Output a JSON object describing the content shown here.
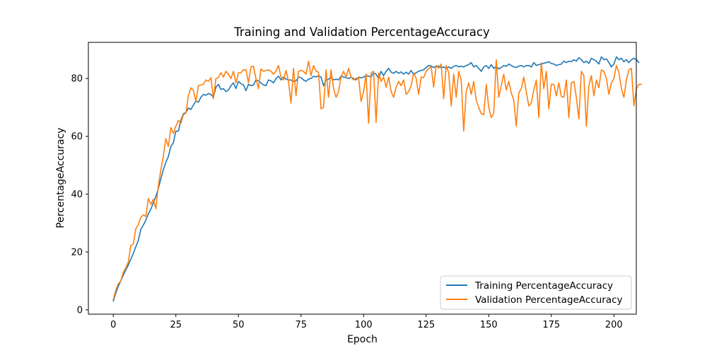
{
  "chart_data": {
    "type": "line",
    "title": "Training and Validation PercentageAccuracy",
    "xlabel": "Epoch",
    "ylabel": "PercentageAccuracy",
    "xlim": [
      -9.95,
      208.95
    ],
    "ylim": [
      -1.5,
      92.5
    ],
    "xticks": [
      0,
      25,
      50,
      75,
      100,
      125,
      150,
      175,
      200
    ],
    "yticks": [
      0,
      20,
      40,
      60,
      80
    ],
    "grid": false,
    "legend_position": "lower-right",
    "colors": {
      "training": "#1f77b4",
      "validation": "#ff7f0e"
    },
    "series": [
      {
        "name": "Training PercentageAccuracy",
        "color": "#1f77b4",
        "values": [
          3.0,
          5.8,
          8.2,
          10.0,
          12.0,
          13.8,
          15.5,
          17.5,
          19.5,
          21.8,
          24.0,
          27.8,
          29.3,
          31.0,
          33.2,
          34.8,
          37.0,
          39.2,
          42.0,
          45.3,
          48.5,
          51.0,
          53.0,
          56.5,
          57.8,
          61.8,
          61.8,
          65.5,
          67.8,
          68.2,
          69.8,
          69.3,
          70.8,
          72.2,
          71.8,
          73.5,
          74.5,
          74.2,
          74.8,
          74.5,
          73.5,
          77.0,
          78.0,
          76.2,
          76.5,
          75.5,
          76.0,
          77.5,
          78.5,
          76.5,
          79.0,
          78.2,
          77.8,
          75.8,
          78.0,
          77.5,
          77.8,
          79.5,
          79.2,
          78.5,
          77.8,
          77.5,
          79.5,
          79.2,
          78.5,
          80.0,
          80.8,
          79.5,
          80.5,
          79.8,
          79.5,
          79.5,
          79.0,
          79.2,
          80.5,
          80.3,
          79.5,
          79.0,
          79.8,
          80.0,
          80.8,
          80.5,
          81.0,
          80.5,
          77.5,
          79.5,
          79.8,
          80.5,
          79.5,
          79.8,
          79.5,
          80.8,
          80.5,
          80.3,
          80.0,
          80.5,
          80.0,
          79.5,
          80.5,
          80.2,
          80.5,
          81.0,
          80.8,
          80.5,
          82.0,
          81.5,
          80.0,
          82.5,
          81.0,
          82.5,
          83.5,
          82.2,
          81.8,
          82.5,
          81.8,
          82.3,
          81.5,
          82.2,
          81.5,
          82.8,
          81.3,
          82.0,
          82.5,
          82.8,
          83.0,
          83.8,
          84.5,
          84.3,
          83.8,
          84.2,
          84.3,
          83.7,
          84.0,
          83.5,
          84.0,
          83.5,
          84.2,
          84.5,
          84.0,
          84.3,
          84.0,
          84.5,
          84.8,
          85.5,
          84.0,
          84.5,
          83.5,
          82.5,
          84.0,
          84.5,
          83.5,
          84.8,
          83.5,
          84.2,
          83.3,
          83.8,
          84.5,
          84.2,
          85.0,
          84.5,
          84.0,
          83.8,
          84.3,
          84.5,
          84.0,
          84.5,
          84.5,
          84.0,
          85.5,
          84.5,
          84.8,
          85.0,
          85.3,
          85.5,
          85.8,
          85.2,
          85.0,
          84.5,
          84.8,
          85.0,
          86.0,
          85.5,
          86.0,
          85.8,
          86.5,
          86.0,
          87.2,
          86.5,
          85.5,
          86.0,
          85.2,
          87.0,
          86.5,
          86.0,
          85.0,
          87.5,
          86.5,
          86.8,
          85.5,
          84.0,
          85.0,
          87.5,
          86.5,
          87.0,
          85.8,
          86.5,
          85.5,
          86.5,
          87.0,
          86.5,
          85.5
        ]
      },
      {
        "name": "Validation PercentageAccuracy",
        "color": "#ff7f0e",
        "values": [
          3.5,
          6.8,
          9.0,
          10.0,
          13.0,
          14.5,
          16.5,
          22.2,
          22.8,
          28.0,
          29.5,
          32.0,
          32.8,
          32.3,
          38.5,
          36.5,
          38.2,
          35.0,
          42.8,
          48.5,
          53.2,
          59.2,
          56.5,
          63.0,
          61.0,
          63.5,
          65.5,
          64.5,
          67.5,
          68.0,
          74.0,
          76.8,
          76.0,
          72.0,
          77.5,
          77.8,
          78.0,
          79.5,
          79.0,
          80.3,
          73.0,
          80.0,
          80.3,
          82.0,
          80.5,
          82.5,
          81.5,
          80.0,
          82.5,
          78.5,
          82.0,
          82.0,
          83.0,
          83.0,
          78.5,
          84.0,
          84.3,
          80.0,
          76.5,
          83.3,
          82.5,
          82.8,
          83.0,
          82.5,
          81.5,
          82.5,
          84.5,
          80.5,
          79.5,
          82.8,
          79.0,
          71.5,
          83.5,
          74.0,
          82.5,
          82.8,
          82.5,
          81.5,
          86.0,
          81.0,
          84.5,
          82.5,
          82.2,
          69.5,
          70.0,
          83.0,
          73.5,
          83.0,
          76.5,
          73.5,
          75.5,
          80.5,
          82.5,
          80.5,
          83.5,
          80.5,
          79.5,
          80.0,
          80.5,
          72.0,
          75.5,
          81.5,
          64.5,
          82.0,
          82.5,
          64.8,
          82.0,
          79.0,
          80.5,
          77.0,
          80.5,
          75.5,
          73.5,
          77.0,
          79.0,
          77.5,
          79.5,
          74.5,
          75.5,
          77.5,
          82.0,
          80.0,
          74.5,
          80.5,
          80.3,
          82.5,
          83.5,
          84.0,
          77.0,
          84.5,
          83.5,
          85.0,
          73.0,
          84.5,
          82.0,
          70.5,
          81.5,
          73.5,
          82.5,
          79.5,
          61.8,
          75.5,
          78.5,
          74.5,
          79.0,
          72.5,
          70.0,
          67.8,
          67.5,
          78.0,
          70.0,
          66.5,
          68.0,
          86.5,
          73.5,
          77.5,
          81.5,
          76.0,
          79.0,
          75.0,
          72.5,
          63.5,
          75.0,
          76.5,
          80.5,
          75.5,
          70.5,
          71.5,
          76.0,
          79.5,
          66.5,
          85.5,
          76.5,
          82.5,
          69.5,
          78.0,
          78.0,
          74.0,
          78.5,
          73.8,
          73.5,
          79.5,
          66.5,
          78.5,
          79.0,
          73.5,
          66.0,
          82.5,
          81.0,
          63.5,
          77.5,
          81.0,
          74.0,
          79.5,
          76.8,
          83.0,
          82.5,
          80.0,
          74.5,
          78.5,
          80.0,
          84.5,
          82.0,
          76.5,
          73.5,
          79.5,
          83.0,
          83.5,
          70.5,
          76.5,
          78.0,
          78.0
        ]
      }
    ]
  }
}
